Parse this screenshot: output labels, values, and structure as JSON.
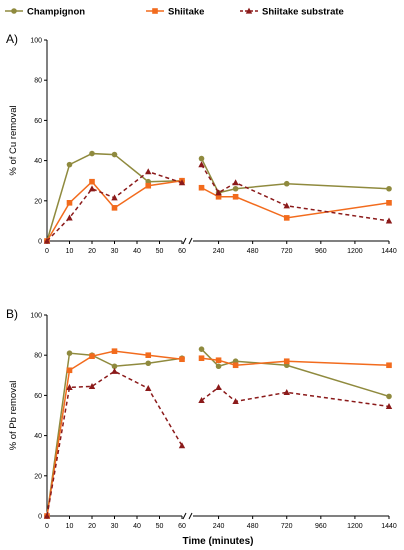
{
  "legend": [
    {
      "name": "Champignon",
      "color": "#8f8a3e",
      "marker": "circle",
      "dashed": false
    },
    {
      "name": "Shiitake",
      "color": "#f26b1d",
      "marker": "square",
      "dashed": false
    },
    {
      "name": "Shiitake substrate",
      "color": "#8b1a1a",
      "marker": "triangle",
      "dashed": true
    }
  ],
  "x_axis_label": "Time  (minutes)",
  "chart_data": [
    {
      "type": "line",
      "panel_label": "A)",
      "ylabel": "% of Cu removal",
      "xlabel": "",
      "ylim": [
        0,
        100
      ],
      "yticks": [
        0,
        20,
        40,
        60,
        80,
        100
      ],
      "x_segments": [
        {
          "range": [
            0,
            60
          ],
          "ticks": [
            0,
            10,
            20,
            30,
            40,
            50,
            60
          ]
        },
        {
          "range": [
            60,
            1440
          ],
          "ticks": [
            240,
            480,
            720,
            960,
            1200,
            1440
          ]
        }
      ],
      "series": [
        {
          "name": "Champignon",
          "x": [
            0,
            10,
            20,
            30,
            45,
            60,
            120,
            240,
            360,
            720,
            1440
          ],
          "y": [
            0,
            38,
            43.5,
            43,
            29.5,
            30,
            41,
            24,
            26,
            28.5,
            26
          ]
        },
        {
          "name": "Shiitake",
          "x": [
            0,
            10,
            20,
            30,
            45,
            60,
            120,
            240,
            360,
            720,
            1440
          ],
          "y": [
            0,
            19,
            29.5,
            16.5,
            27.5,
            30,
            26.5,
            22,
            22,
            11.5,
            19
          ]
        },
        {
          "name": "Shiitake substrate",
          "x": [
            0,
            10,
            20,
            30,
            45,
            60,
            120,
            240,
            360,
            720,
            1440
          ],
          "y": [
            0,
            11.5,
            26,
            21.5,
            34.5,
            29,
            38,
            24,
            29,
            17.5,
            10
          ]
        }
      ]
    },
    {
      "type": "line",
      "panel_label": "B)",
      "ylabel": "% of Pb removal",
      "xlabel": "Time  (minutes)",
      "ylim": [
        0,
        100
      ],
      "yticks": [
        0,
        20,
        40,
        60,
        80,
        100
      ],
      "x_segments": [
        {
          "range": [
            0,
            60
          ],
          "ticks": [
            0,
            10,
            20,
            30,
            40,
            50,
            60
          ]
        },
        {
          "range": [
            60,
            1440
          ],
          "ticks": [
            240,
            480,
            720,
            960,
            1200,
            1440
          ]
        }
      ],
      "series": [
        {
          "name": "Champignon",
          "x": [
            0,
            10,
            20,
            30,
            45,
            60,
            120,
            240,
            360,
            720,
            1440
          ],
          "y": [
            0,
            81,
            80,
            74.5,
            76,
            78.5,
            83,
            74.5,
            77,
            75,
            59.5
          ]
        },
        {
          "name": "Shiitake",
          "x": [
            0,
            10,
            20,
            30,
            45,
            60,
            120,
            240,
            360,
            720,
            1440
          ],
          "y": [
            0,
            72.5,
            79.5,
            82,
            80,
            78,
            78.5,
            77.5,
            75,
            77,
            75
          ]
        },
        {
          "name": "Shiitake substrate",
          "x": [
            0,
            10,
            20,
            30,
            45,
            60,
            120,
            240,
            360,
            720,
            1440
          ],
          "y": [
            0,
            64,
            64.5,
            72,
            63.5,
            35,
            57.5,
            64,
            57,
            61.5,
            54.5
          ]
        }
      ]
    }
  ]
}
